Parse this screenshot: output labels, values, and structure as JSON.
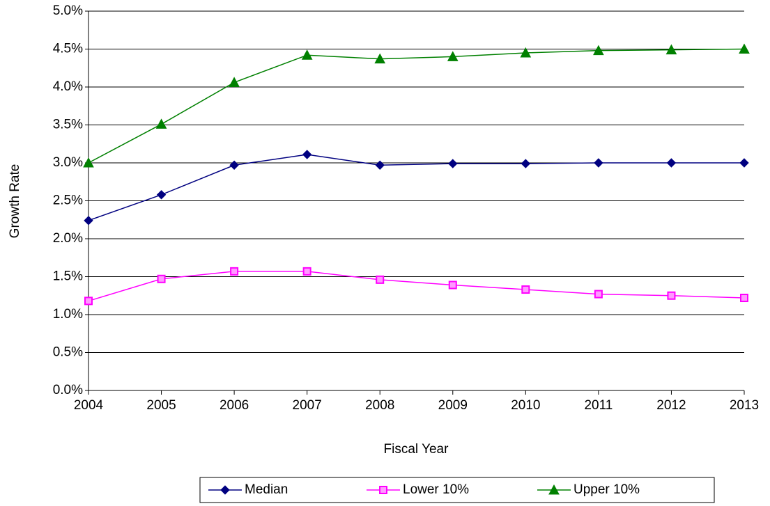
{
  "chart_data": {
    "type": "line",
    "x_label": "Fiscal Year",
    "y_label": "Growth Rate",
    "x": [
      2004,
      2005,
      2006,
      2007,
      2008,
      2009,
      2010,
      2011,
      2012,
      2013
    ],
    "xlim": [
      2004,
      2013
    ],
    "xticks": [
      2004,
      2005,
      2006,
      2007,
      2008,
      2009,
      2010,
      2011,
      2012,
      2013
    ],
    "ylim": [
      0,
      5
    ],
    "yticks": [
      {
        "value": 0,
        "label": "0.0%"
      },
      {
        "value": 0.5,
        "label": "0.5%"
      },
      {
        "value": 1,
        "label": "1.0%"
      },
      {
        "value": 1.5,
        "label": "1.5%"
      },
      {
        "value": 2,
        "label": "2.0%"
      },
      {
        "value": 2.5,
        "label": "2.5%"
      },
      {
        "value": 3,
        "label": "3.0%"
      },
      {
        "value": 3.5,
        "label": "3.5%"
      },
      {
        "value": 4,
        "label": "4.0%"
      },
      {
        "value": 4.5,
        "label": "4.5%"
      },
      {
        "value": 5,
        "label": "5.0%"
      }
    ],
    "grid": true,
    "legend": "bottom",
    "series": [
      {
        "name": "Median",
        "color": "#000080",
        "marker": "diamond",
        "values": [
          2.24,
          2.58,
          2.97,
          3.11,
          2.97,
          2.99,
          2.99,
          3.0,
          3.0,
          3.0
        ]
      },
      {
        "name": "Lower 10%",
        "color": "#ff00ff",
        "marker": "square",
        "values": [
          1.18,
          1.47,
          1.57,
          1.57,
          1.46,
          1.39,
          1.33,
          1.27,
          1.25,
          1.22
        ]
      },
      {
        "name": "Upper 10%",
        "color": "#008000",
        "marker": "triangle",
        "values": [
          3.0,
          3.51,
          4.06,
          4.42,
          4.37,
          4.4,
          4.45,
          4.48,
          4.49,
          4.5
        ]
      }
    ]
  }
}
